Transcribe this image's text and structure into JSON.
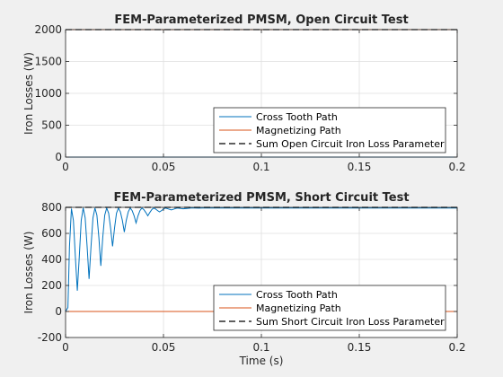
{
  "chart_data": [
    {
      "type": "line",
      "title": "FEM-Parameterized PMSM, Open Circuit Test",
      "xlabel": "",
      "ylabel": "Iron Losses (W)",
      "xlim": [
        0,
        0.2
      ],
      "ylim": [
        0,
        2000
      ],
      "xticks": [
        0,
        0.05,
        0.1,
        0.15,
        0.2
      ],
      "xtick_labels": [
        "0",
        "0.05",
        "0.1",
        "0.15",
        "0.2"
      ],
      "yticks": [
        0,
        500,
        1000,
        1500,
        2000
      ],
      "ytick_labels": [
        "0",
        "500",
        "1000",
        "1500",
        "2000"
      ],
      "grid": true,
      "legend_position": "bottom-right",
      "series": [
        {
          "name": "Cross Tooth Path",
          "color": "#0072bd",
          "style": "solid",
          "x": [
            0,
            0.2
          ],
          "y": [
            0,
            0
          ]
        },
        {
          "name": "Magnetizing Path",
          "color": "#d95319",
          "style": "solid",
          "x": [
            0,
            0.2
          ],
          "y": [
            2000,
            2000
          ]
        },
        {
          "name": "Sum Open Circuit Iron Loss Parameter",
          "color": "#000000",
          "style": "dashed",
          "x": [
            0,
            0.2
          ],
          "y": [
            2000,
            2000
          ]
        }
      ]
    },
    {
      "type": "line",
      "title": "FEM-Parameterized PMSM, Short Circuit Test",
      "xlabel": "Time (s)",
      "ylabel": "Iron Losses (W)",
      "xlim": [
        0,
        0.2
      ],
      "ylim": [
        -200,
        800
      ],
      "xticks": [
        0,
        0.05,
        0.1,
        0.15,
        0.2
      ],
      "xtick_labels": [
        "0",
        "0.05",
        "0.1",
        "0.15",
        "0.2"
      ],
      "yticks": [
        -200,
        0,
        200,
        400,
        600,
        800
      ],
      "ytick_labels": [
        "-200",
        "0",
        "200",
        "400",
        "600",
        "800"
      ],
      "grid": true,
      "legend_position": "bottom-right",
      "series": [
        {
          "name": "Cross Tooth Path",
          "color": "#0072bd",
          "style": "solid",
          "x": [
            0,
            0.0012,
            0.002,
            0.003,
            0.004,
            0.005,
            0.006,
            0.007,
            0.008,
            0.009,
            0.01,
            0.011,
            0.012,
            0.013,
            0.014,
            0.015,
            0.016,
            0.017,
            0.018,
            0.019,
            0.02,
            0.021,
            0.022,
            0.023,
            0.024,
            0.025,
            0.026,
            0.027,
            0.028,
            0.029,
            0.03,
            0.031,
            0.032,
            0.033,
            0.034,
            0.035,
            0.036,
            0.037,
            0.038,
            0.039,
            0.04,
            0.041,
            0.042,
            0.043,
            0.044,
            0.045,
            0.046,
            0.047,
            0.048,
            0.049,
            0.05,
            0.051,
            0.052,
            0.053,
            0.054,
            0.055,
            0.056,
            0.057,
            0.058,
            0.059,
            0.06,
            0.062,
            0.064,
            0.066,
            0.068,
            0.07,
            0.075,
            0.08,
            0.2
          ],
          "y": [
            0,
            30,
            500,
            790,
            700,
            420,
            160,
            420,
            700,
            795,
            720,
            500,
            250,
            500,
            720,
            795,
            740,
            570,
            350,
            570,
            740,
            795,
            755,
            640,
            500,
            640,
            755,
            795,
            765,
            700,
            610,
            700,
            765,
            795,
            775,
            735,
            680,
            735,
            775,
            795,
            782,
            760,
            735,
            760,
            782,
            795,
            787,
            775,
            765,
            775,
            787,
            795,
            790,
            785,
            780,
            785,
            790,
            795,
            793,
            791,
            789,
            791,
            795,
            795,
            794,
            795,
            795,
            795,
            795
          ]
        },
        {
          "name": "Magnetizing Path",
          "color": "#d95319",
          "style": "solid",
          "x": [
            0,
            0.2
          ],
          "y": [
            0,
            0
          ]
        },
        {
          "name": "Sum Short Circuit Iron Loss Parameter",
          "color": "#000000",
          "style": "dashed",
          "x": [
            0,
            0.2
          ],
          "y": [
            800,
            800
          ]
        }
      ]
    }
  ]
}
